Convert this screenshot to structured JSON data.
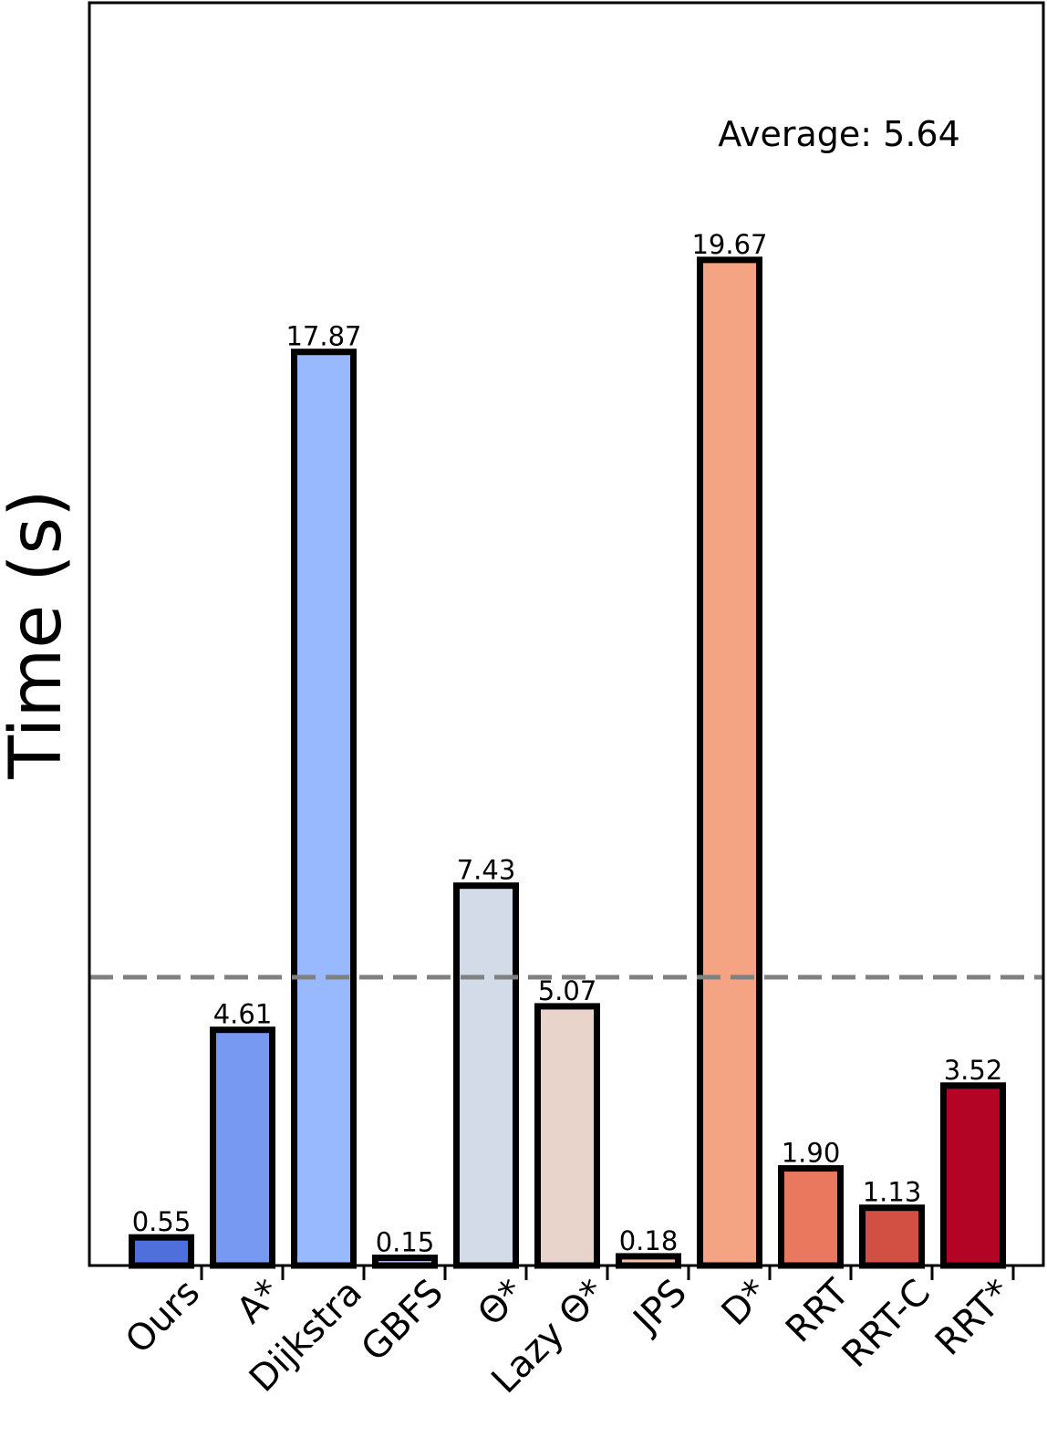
{
  "chart_data": {
    "type": "bar",
    "categories": [
      "Ours",
      "A*",
      "Dijkstra",
      "GBFS",
      "Θ*",
      "Lazy Θ*",
      "JPS",
      "D*",
      "RRT",
      "RRT-C",
      "RRT*"
    ],
    "values": [
      0.55,
      4.61,
      17.87,
      0.15,
      7.43,
      5.07,
      0.18,
      19.67,
      1.9,
      1.13,
      3.52
    ],
    "value_labels": [
      "0.55",
      "4.61",
      "17.87",
      "0.15",
      "7.43",
      "5.07",
      "0.18",
      "19.67",
      "1.90",
      "1.13",
      "3.52"
    ],
    "colors": [
      "#4f6fdc",
      "#7799f2",
      "#98b9fd",
      "#b9cffb",
      "#d2dbe7",
      "#e8d4cb",
      "#f4c1a8",
      "#f4a482",
      "#e9785f",
      "#d24f43",
      "#b40426"
    ],
    "title": "",
    "xlabel": "",
    "ylabel": "Time (s)",
    "ylim": [
      0,
      24.7
    ],
    "average": 5.64,
    "average_label": "Average: 5.64",
    "average_line_color": "#808080",
    "grid": false,
    "yticks_visible": false
  }
}
